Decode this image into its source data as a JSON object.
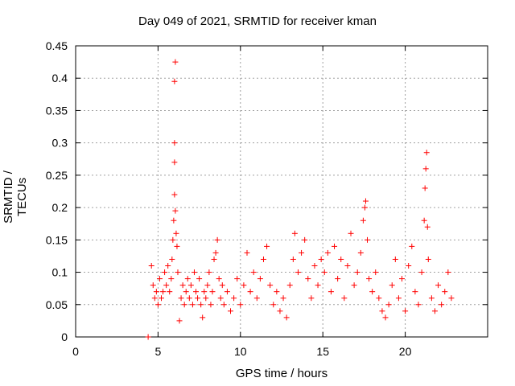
{
  "chart_data": {
    "type": "scatter",
    "title": "Day 049 of 2021, SRMTID for receiver kman",
    "xlabel": "GPS time / hours",
    "ylabel": "SRMTID / TECUs",
    "xlim": [
      0,
      25
    ],
    "ylim": [
      0,
      0.45
    ],
    "xticks": [
      0,
      5,
      10,
      15,
      20
    ],
    "yticks": [
      0,
      0.05,
      0.1,
      0.15,
      0.2,
      0.25,
      0.3,
      0.35,
      0.4,
      0.45
    ],
    "grid": true,
    "marker": "+",
    "color": "#ff0000",
    "series": [
      {
        "name": "SRMTID",
        "points": [
          [
            4.4,
            0.0
          ],
          [
            4.6,
            0.11
          ],
          [
            4.7,
            0.08
          ],
          [
            4.8,
            0.06
          ],
          [
            4.9,
            0.07
          ],
          [
            5.0,
            0.05
          ],
          [
            5.1,
            0.09
          ],
          [
            5.2,
            0.06
          ],
          [
            5.3,
            0.07
          ],
          [
            5.4,
            0.1
          ],
          [
            5.5,
            0.08
          ],
          [
            5.6,
            0.11
          ],
          [
            5.7,
            0.07
          ],
          [
            5.8,
            0.09
          ],
          [
            5.85,
            0.12
          ],
          [
            5.9,
            0.15
          ],
          [
            5.95,
            0.18
          ],
          [
            6.0,
            0.22
          ],
          [
            6.0,
            0.27
          ],
          [
            6.0,
            0.3
          ],
          [
            6.0,
            0.395
          ],
          [
            6.05,
            0.425
          ],
          [
            6.05,
            0.195
          ],
          [
            6.1,
            0.16
          ],
          [
            6.15,
            0.14
          ],
          [
            6.2,
            0.1
          ],
          [
            6.3,
            0.025
          ],
          [
            6.4,
            0.06
          ],
          [
            6.5,
            0.08
          ],
          [
            6.6,
            0.05
          ],
          [
            6.7,
            0.07
          ],
          [
            6.8,
            0.09
          ],
          [
            6.9,
            0.06
          ],
          [
            7.0,
            0.08
          ],
          [
            7.1,
            0.05
          ],
          [
            7.2,
            0.1
          ],
          [
            7.3,
            0.07
          ],
          [
            7.4,
            0.06
          ],
          [
            7.5,
            0.09
          ],
          [
            7.6,
            0.05
          ],
          [
            7.7,
            0.03
          ],
          [
            7.8,
            0.07
          ],
          [
            7.9,
            0.06
          ],
          [
            8.0,
            0.08
          ],
          [
            8.1,
            0.1
          ],
          [
            8.2,
            0.05
          ],
          [
            8.3,
            0.07
          ],
          [
            8.4,
            0.12
          ],
          [
            8.5,
            0.13
          ],
          [
            8.6,
            0.15
          ],
          [
            8.7,
            0.09
          ],
          [
            8.8,
            0.06
          ],
          [
            8.9,
            0.08
          ],
          [
            9.0,
            0.05
          ],
          [
            9.2,
            0.07
          ],
          [
            9.4,
            0.04
          ],
          [
            9.6,
            0.06
          ],
          [
            9.8,
            0.09
          ],
          [
            10.0,
            0.05
          ],
          [
            10.2,
            0.08
          ],
          [
            10.4,
            0.13
          ],
          [
            10.6,
            0.07
          ],
          [
            10.8,
            0.1
          ],
          [
            11.0,
            0.06
          ],
          [
            11.2,
            0.09
          ],
          [
            11.4,
            0.12
          ],
          [
            11.6,
            0.14
          ],
          [
            11.8,
            0.08
          ],
          [
            12.0,
            0.05
          ],
          [
            12.2,
            0.07
          ],
          [
            12.4,
            0.04
          ],
          [
            12.6,
            0.06
          ],
          [
            12.8,
            0.03
          ],
          [
            13.0,
            0.08
          ],
          [
            13.2,
            0.12
          ],
          [
            13.3,
            0.16
          ],
          [
            13.5,
            0.1
          ],
          [
            13.7,
            0.13
          ],
          [
            13.9,
            0.15
          ],
          [
            14.1,
            0.09
          ],
          [
            14.3,
            0.06
          ],
          [
            14.5,
            0.11
          ],
          [
            14.7,
            0.08
          ],
          [
            14.9,
            0.12
          ],
          [
            15.1,
            0.1
          ],
          [
            15.3,
            0.13
          ],
          [
            15.5,
            0.07
          ],
          [
            15.7,
            0.14
          ],
          [
            15.9,
            0.09
          ],
          [
            16.1,
            0.12
          ],
          [
            16.3,
            0.06
          ],
          [
            16.5,
            0.11
          ],
          [
            16.7,
            0.16
          ],
          [
            16.9,
            0.08
          ],
          [
            17.1,
            0.1
          ],
          [
            17.3,
            0.13
          ],
          [
            17.45,
            0.18
          ],
          [
            17.55,
            0.2
          ],
          [
            17.6,
            0.21
          ],
          [
            17.7,
            0.15
          ],
          [
            17.8,
            0.09
          ],
          [
            18.0,
            0.07
          ],
          [
            18.2,
            0.1
          ],
          [
            18.4,
            0.06
          ],
          [
            18.6,
            0.04
          ],
          [
            18.8,
            0.03
          ],
          [
            19.0,
            0.05
          ],
          [
            19.2,
            0.08
          ],
          [
            19.4,
            0.12
          ],
          [
            19.6,
            0.06
          ],
          [
            19.8,
            0.09
          ],
          [
            20.0,
            0.04
          ],
          [
            20.2,
            0.11
          ],
          [
            20.4,
            0.14
          ],
          [
            20.6,
            0.07
          ],
          [
            20.8,
            0.05
          ],
          [
            21.0,
            0.1
          ],
          [
            21.15,
            0.18
          ],
          [
            21.2,
            0.23
          ],
          [
            21.25,
            0.26
          ],
          [
            21.3,
            0.285
          ],
          [
            21.35,
            0.17
          ],
          [
            21.4,
            0.12
          ],
          [
            21.6,
            0.06
          ],
          [
            21.8,
            0.04
          ],
          [
            22.0,
            0.08
          ],
          [
            22.2,
            0.05
          ],
          [
            22.4,
            0.07
          ],
          [
            22.6,
            0.1
          ],
          [
            22.8,
            0.06
          ]
        ]
      }
    ]
  }
}
